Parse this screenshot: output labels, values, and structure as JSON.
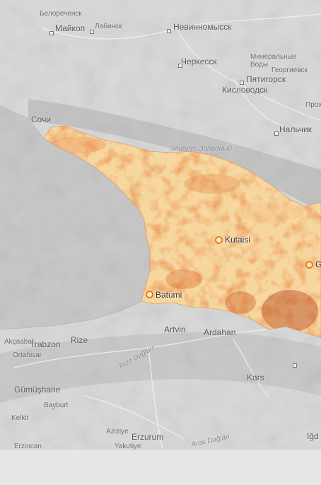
{
  "map": {
    "colors": {
      "land": "#d8d8d8",
      "sea": "#c6c6c6",
      "region_fill": "#f6d7a0",
      "hot": "#d9652a",
      "marker": "#f07a1a"
    },
    "cities": [
      {
        "name": "Kutaisi",
        "id": "kutaisi"
      },
      {
        "name": "Batumi",
        "id": "batumi"
      },
      {
        "name": "G",
        "id": "partial-city"
      }
    ],
    "background_labels": [
      "Белореченск",
      "Майкоп",
      "Лабинск",
      "Невинномысск",
      "Черкесск",
      "Минеральные",
      "Воды",
      "Георгиевск",
      "Пятигорск",
      "Кисловодск",
      "Прох",
      "Нальчик",
      "Сочи",
      "Эльбрус Западный",
      "Artvin",
      "Ardahan",
      "Trabzon",
      "Rize",
      "Akçaabat",
      "Ortahisar",
      "Gümüşhane",
      "Bayburt",
      "Kelkit",
      "Aziziye",
      "Erzurum",
      "Yakutiye",
      "Kars",
      "Iğd",
      "Erzincan",
      "Aras Dağları",
      "Rize Dağları"
    ]
  }
}
